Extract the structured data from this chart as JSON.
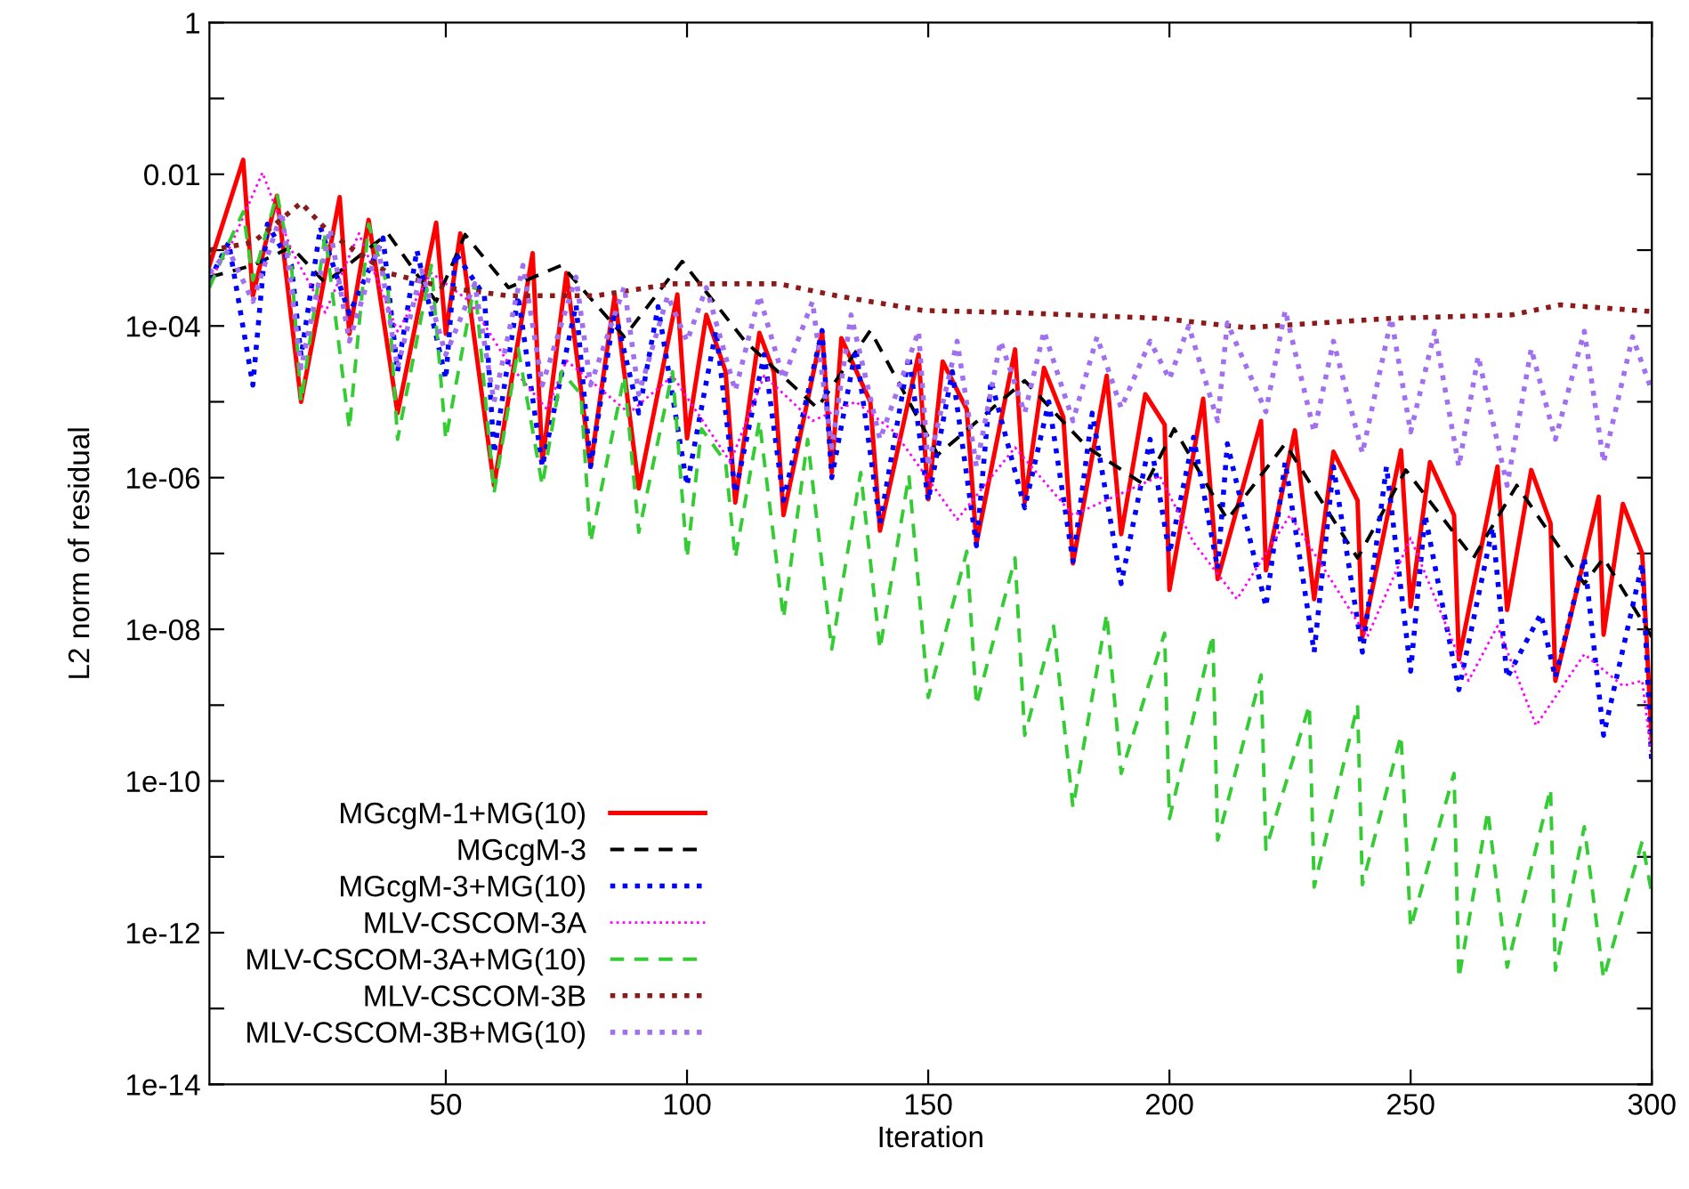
{
  "chart_data": {
    "type": "line",
    "xlabel": "Iteration",
    "ylabel": "L2 norm of residual",
    "log": "y",
    "legend": "bottom left",
    "grid": false,
    "marker": "none",
    "xlim": [
      1,
      300
    ],
    "xticks": [
      50,
      100,
      150,
      200,
      250,
      300
    ],
    "ylim": [
      1e-14,
      1
    ],
    "yticks": [
      {
        "value": 1,
        "label": "1"
      },
      {
        "value": 0.1,
        "label": null
      },
      {
        "value": 0.01,
        "label": "0.01"
      },
      {
        "value": 0.001,
        "label": null
      },
      {
        "value": 0.0001,
        "label": "1e-04"
      },
      {
        "value": 1e-05,
        "label": null
      },
      {
        "value": 1e-06,
        "label": "1e-06"
      },
      {
        "value": 1e-07,
        "label": null
      },
      {
        "value": 1e-08,
        "label": "1e-08"
      },
      {
        "value": 1e-09,
        "label": null
      },
      {
        "value": 1e-10,
        "label": "1e-10"
      },
      {
        "value": 1e-11,
        "label": null
      },
      {
        "value": 1e-12,
        "label": "1e-12"
      },
      {
        "value": 1e-13,
        "label": null
      },
      {
        "value": 1e-14,
        "label": "1e-14"
      }
    ],
    "series": [
      {
        "name": "MGcgM-1+MG(10)",
        "color": "#ff0000",
        "line_style": "solid",
        "x": [
          1,
          8,
          10,
          15,
          20,
          28,
          30,
          34,
          40,
          48,
          50,
          53,
          60,
          68,
          70,
          75,
          80,
          85,
          90,
          98,
          100,
          104,
          108,
          110,
          115,
          118,
          120,
          128,
          130,
          132,
          138,
          140,
          148,
          150,
          153,
          158,
          160,
          168,
          170,
          174,
          178,
          180,
          187,
          190,
          195,
          199,
          200,
          207,
          210,
          219,
          220,
          226,
          230,
          234,
          239,
          240,
          248,
          250,
          254,
          259,
          260,
          268,
          270,
          275,
          279,
          280,
          289,
          290,
          294,
          298,
          300
        ],
        "values": [
          0.00063,
          0.0155,
          0.00025,
          0.0052,
          1e-05,
          0.005,
          7.9e-05,
          0.0025,
          7.1e-06,
          0.0023,
          7.9e-05,
          0.00166,
          7.9e-07,
          0.00091,
          1.6e-06,
          0.0005,
          1.4e-06,
          0.00025,
          7.2e-07,
          0.00026,
          3.3e-06,
          0.00014,
          2.5e-05,
          4.7e-07,
          8.1e-05,
          2.5e-05,
          3.2e-07,
          8.5e-05,
          1.17e-06,
          6.9e-05,
          1e-05,
          2e-07,
          4.2e-05,
          5.2e-07,
          3.4e-05,
          7.9e-06,
          1.35e-07,
          4.9e-05,
          4.7e-07,
          2.8e-05,
          6.3e-06,
          7.4e-08,
          2.2e-05,
          1.8e-07,
          1.26e-05,
          5e-06,
          3.3e-08,
          1.1e-05,
          4.6e-08,
          5.6e-06,
          6e-08,
          4.2e-06,
          2.5e-08,
          2.2e-06,
          5e-07,
          7.9e-09,
          2.3e-06,
          2e-08,
          1.6e-06,
          3.2e-07,
          4e-09,
          1.4e-06,
          1.8e-08,
          1.26e-06,
          2.5e-07,
          2.1e-09,
          5.6e-07,
          8.5e-09,
          4.5e-07,
          1e-07,
          3.2e-10
        ]
      },
      {
        "name": "MGcgM-3",
        "color": "#000000",
        "line_style": "dashed",
        "x": [
          1,
          10,
          18,
          25,
          38,
          48,
          54,
          63,
          74,
          87,
          99,
          112,
          127,
          138,
          152,
          170,
          183,
          195,
          201,
          212,
          224,
          239,
          249,
          263,
          272,
          286,
          290,
          300
        ],
        "values": [
          0.00044,
          0.00063,
          0.0011,
          0.00037,
          0.00166,
          0.00021,
          0.0016,
          0.00032,
          0.00063,
          7.2e-05,
          0.00071,
          6.3e-05,
          8.3e-06,
          8.7e-05,
          2e-06,
          1.9e-05,
          2.5e-06,
          7.9e-07,
          4.4e-06,
          2.8e-07,
          2.8e-06,
          8.7e-08,
          1.26e-06,
          8.7e-08,
          7.9e-07,
          4e-08,
          8.7e-08,
          7.9e-09
        ]
      },
      {
        "name": "MGcgM-3+MG(10)",
        "color": "#0000ff",
        "line_style": "dotted",
        "x": [
          1,
          5,
          10,
          13,
          18,
          20,
          24,
          30,
          37,
          40,
          44,
          50,
          52,
          58,
          60,
          65,
          70,
          77,
          80,
          85,
          90,
          94,
          100,
          106,
          110,
          116,
          120,
          128,
          130,
          135,
          140,
          146,
          150,
          155,
          160,
          163,
          170,
          175,
          180,
          184,
          190,
          196,
          200,
          205,
          210,
          212,
          220,
          224,
          230,
          234,
          240,
          245,
          250,
          253,
          260,
          267,
          270,
          277,
          280,
          286,
          290,
          298,
          300
        ],
        "values": [
          0.0004,
          0.00126,
          1.66e-05,
          0.0022,
          0.00063,
          4e-05,
          0.002,
          0.000145,
          0.00145,
          2.5e-05,
          0.001,
          2e-05,
          0.00091,
          0.00025,
          2.1e-06,
          0.00025,
          1.4e-06,
          0.00019,
          1.4e-06,
          0.00016,
          7.1e-06,
          0.00018,
          7.9e-07,
          8.7e-05,
          6.3e-07,
          4.2e-05,
          5e-07,
          8.7e-05,
          1e-06,
          5e-05,
          2.5e-07,
          4e-05,
          5e-07,
          2.5e-05,
          1.26e-07,
          1.9e-05,
          4e-07,
          1e-05,
          7.9e-08,
          7.1e-06,
          4e-08,
          3.2e-06,
          1e-07,
          3.4e-06,
          6.3e-08,
          2.8e-06,
          2e-08,
          1.6e-06,
          5e-09,
          1.4e-06,
          5e-09,
          1.4e-06,
          2.8e-09,
          3.2e-07,
          1.6e-09,
          2.2e-07,
          2.3e-09,
          1.6e-08,
          2.3e-09,
          8.7e-08,
          4e-10,
          7.4e-08,
          1.6e-10
        ]
      },
      {
        "name": "MLV-CSCOM-3A",
        "color": "#ff00ff",
        "line_style": "dotted",
        "x": [
          1,
          5,
          12,
          18,
          25,
          32,
          40,
          47,
          55,
          63,
          71,
          75,
          88,
          97,
          109,
          116,
          126,
          135,
          143,
          156,
          168,
          180,
          198,
          205,
          214,
          225,
          241,
          250,
          262,
          268,
          276,
          286,
          294,
          298,
          300
        ],
        "values": [
          0.0004,
          0.001,
          0.0105,
          0.001,
          0.00015,
          0.00166,
          8.5e-05,
          0.0005,
          0.00021,
          3.2e-05,
          7.9e-06,
          3.5e-05,
          7.1e-06,
          2.2e-05,
          1.6e-06,
          2.2e-05,
          5.6e-06,
          1e-05,
          4e-06,
          2.8e-07,
          2.5e-06,
          3.2e-07,
          1.05e-06,
          1.4e-07,
          2.5e-08,
          3.2e-07,
          7.9e-09,
          1.6e-07,
          2.1e-09,
          1.1e-08,
          5.4e-10,
          4.7e-09,
          1.8e-09,
          2.1e-09,
          2e-10
        ]
      },
      {
        "name": "MLV-CSCOM-3A+MG(10)",
        "color": "#33cc33",
        "line_style": "dashed",
        "x": [
          1,
          5,
          8,
          10,
          15,
          18,
          20,
          25,
          30,
          34,
          38,
          40,
          47,
          50,
          56,
          60,
          65,
          70,
          74,
          78,
          80,
          87,
          90,
          97,
          100,
          103,
          108,
          110,
          115,
          120,
          125,
          130,
          136,
          140,
          146,
          150,
          158,
          160,
          168,
          170,
          176,
          180,
          187,
          190,
          199,
          200,
          209,
          210,
          219,
          220,
          229,
          230,
          239,
          240,
          248,
          250,
          259,
          260,
          266,
          270,
          279,
          280,
          286,
          290,
          298,
          300
        ],
        "values": [
          0.00032,
          0.00126,
          0.0032,
          0.0004,
          0.0055,
          0.00063,
          1e-05,
          0.0016,
          4.4e-06,
          0.0022,
          0.00032,
          3.2e-06,
          0.00063,
          3.2e-06,
          0.00037,
          6.3e-07,
          5e-05,
          7.9e-07,
          2.5e-05,
          1.26e-05,
          1.4e-07,
          2.2e-05,
          1.9e-07,
          2.5e-05,
          8.7e-08,
          4.4e-06,
          1.6e-06,
          8.7e-08,
          5.6e-06,
          1.4e-08,
          3.2e-06,
          5.5e-09,
          1.17e-06,
          5.5e-09,
          1.07e-06,
          1.26e-09,
          1.07e-07,
          1e-09,
          8.7e-08,
          4e-10,
          1.1e-08,
          4.5e-11,
          1.6e-08,
          1.26e-10,
          8.9e-09,
          3.2e-11,
          8.5e-09,
          1.66e-11,
          2.5e-09,
          1.26e-11,
          1e-09,
          4e-12,
          1e-09,
          4.3e-12,
          4e-10,
          1.17e-12,
          1.26e-10,
          2.5e-13,
          4e-11,
          3.5e-13,
          7.9e-11,
          3.2e-13,
          2.5e-11,
          2.5e-13,
          1.6e-11,
          3.2e-12
        ]
      },
      {
        "name": "MLV-CSCOM-3B",
        "color": "#8b1a1a",
        "line_style": "dotted",
        "x": [
          1,
          10,
          20,
          26,
          38,
          50,
          63,
          81,
          97,
          119,
          131,
          149,
          168,
          198,
          216,
          246,
          271,
          281,
          300
        ],
        "values": [
          0.001,
          0.00126,
          0.0042,
          0.00166,
          0.0005,
          0.00032,
          0.00025,
          0.00025,
          0.00036,
          0.00036,
          0.00025,
          0.00016,
          0.00015,
          0.000126,
          9.5e-05,
          0.000126,
          0.00014,
          0.00019,
          0.000155
        ]
      },
      {
        "name": "MLV-CSCOM-3B+MG(10)",
        "color": "#a070f0",
        "line_style": "dotted",
        "x": [
          1,
          5,
          10,
          16,
          20,
          26,
          30,
          36,
          40,
          45,
          50,
          56,
          60,
          66,
          70,
          77,
          80,
          87,
          90,
          96,
          100,
          104,
          110,
          115,
          120,
          126,
          130,
          134,
          140,
          148,
          150,
          156,
          160,
          165,
          170,
          174,
          180,
          185,
          190,
          196,
          200,
          204,
          210,
          212,
          220,
          224,
          230,
          234,
          240,
          246,
          250,
          255,
          260,
          264,
          270,
          275,
          280,
          286,
          290,
          296,
          300
        ],
        "values": [
          0.0005,
          0.001,
          0.00021,
          0.0032,
          2.8e-05,
          0.0019,
          6.3e-05,
          0.0011,
          2.8e-05,
          0.00054,
          4.2e-05,
          0.00036,
          1e-05,
          0.00063,
          1.66e-05,
          0.00044,
          1.66e-05,
          0.00033,
          1.26e-05,
          0.00025,
          6.3e-05,
          0.00032,
          1.4e-05,
          0.00025,
          2e-05,
          0.00021,
          2.5e-06,
          0.00014,
          3.2e-06,
          8.5e-05,
          1.4e-06,
          6.3e-05,
          1.4e-06,
          6.3e-05,
          7.1e-06,
          8.5e-05,
          5.6e-06,
          7.2e-05,
          8.3e-06,
          6.3e-05,
          2e-05,
          0.0001,
          5.6e-06,
          0.00011,
          7.4e-06,
          0.00016,
          4e-06,
          6.3e-05,
          2.1e-06,
          0.000126,
          4e-06,
          8.5e-05,
          1.4e-06,
          4e-05,
          7.9e-07,
          5e-05,
          3.2e-06,
          8.5e-05,
          1.6e-06,
          7.2e-05,
          1.4e-05
        ]
      }
    ]
  }
}
